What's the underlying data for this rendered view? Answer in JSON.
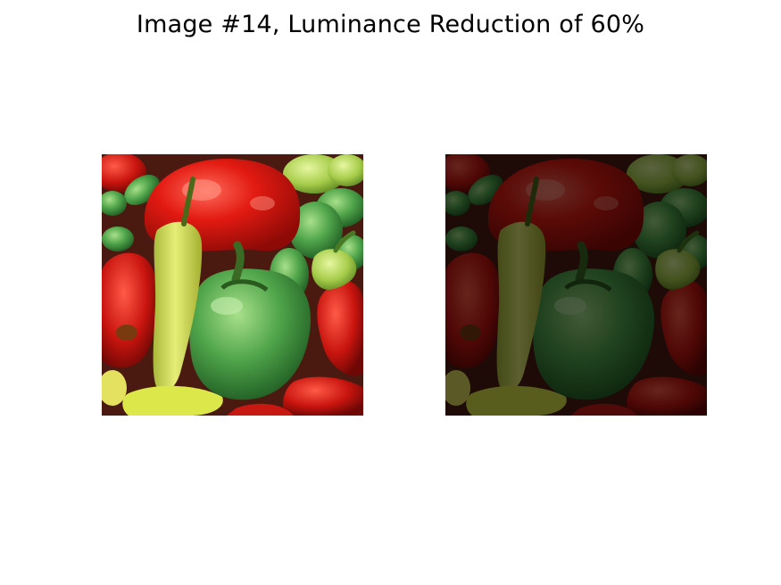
{
  "title": "Image #14, Luminance Reduction of 60%",
  "panels": [
    {
      "name": "original-peppers-image",
      "depicts": "peppers"
    },
    {
      "name": "luminance-reduced-peppers-image",
      "depicts": "peppers",
      "brightness_fraction": 0.4
    }
  ]
}
